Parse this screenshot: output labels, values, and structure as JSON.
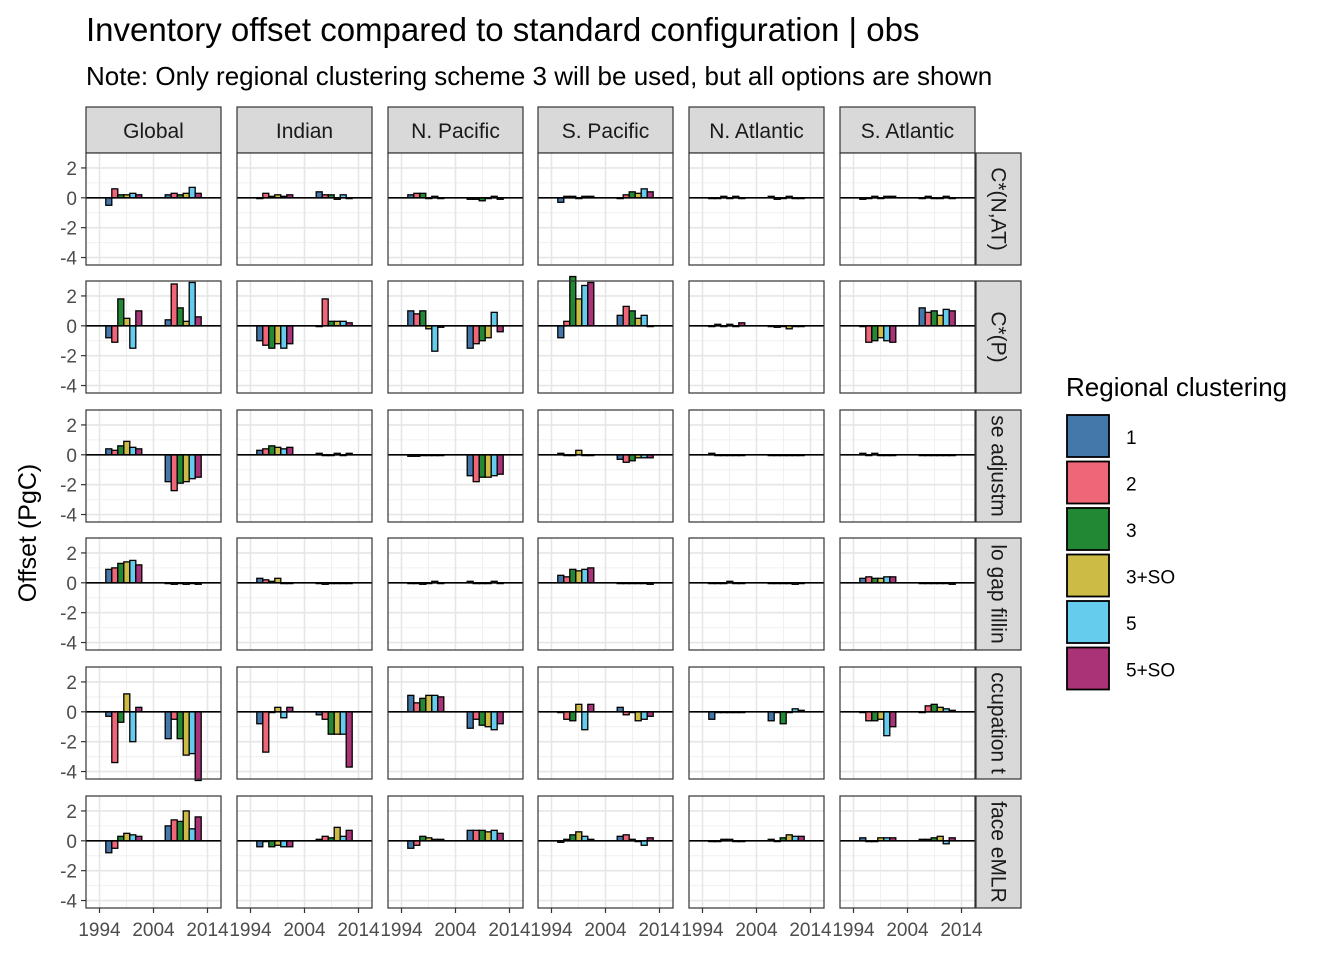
{
  "chart_data": {
    "type": "bar",
    "title": "Inventory offset compared to standard configuration | obs",
    "subtitle": "Note: Only regional clustering scheme 3 will be used, but all options are shown",
    "ylabel": "Offset (PgC)",
    "xlabel": "",
    "ylim": [
      -4.5,
      3
    ],
    "yticks": [
      2,
      0,
      -2,
      -4
    ],
    "xticks": [
      "1994",
      "2004",
      "2014"
    ],
    "xticks_year_values": [
      1994,
      2004,
      2014
    ],
    "xticks_minor_labels": [
      "-2004"
    ],
    "columns": [
      "Global",
      "Indian",
      "N. Pacific",
      "S. Pacific",
      "N. Atlantic",
      "S. Atlantic"
    ],
    "rows": [
      "C*(N,AT)",
      "C*(P)",
      "se adjustm",
      "lo gap fillin",
      "ccupation t",
      "face eMLR"
    ],
    "x_years": [
      1994,
      2004,
      2014
    ],
    "legend": {
      "title": "Regional clustering",
      "items": [
        {
          "name": "1",
          "color": "#4477aa"
        },
        {
          "name": "2",
          "color": "#ee6677"
        },
        {
          "name": "3",
          "color": "#228833"
        },
        {
          "name": "3+SO",
          "color": "#ccbb44"
        },
        {
          "name": "5",
          "color": "#66ccee"
        },
        {
          "name": "5+SO",
          "color": "#aa3377"
        }
      ]
    },
    "panels": [
      [
        [
          [
            -0.5,
            0.6,
            0.2,
            0.2,
            0.3,
            0.2
          ],
          [
            0.2,
            0.3,
            0.2,
            0.3,
            0.7,
            0.3
          ]
        ],
        [
          [
            0.0,
            0.3,
            0.1,
            0.2,
            0.1,
            0.2
          ],
          [
            0.4,
            0.2,
            0.2,
            -0.1,
            0.2,
            0.0
          ]
        ],
        [
          [
            0.2,
            0.3,
            0.3,
            0.0,
            0.1,
            0.0
          ],
          [
            -0.1,
            -0.1,
            -0.2,
            0.0,
            0.1,
            -0.1
          ]
        ],
        [
          [
            -0.3,
            0.1,
            0.1,
            0.0,
            0.1,
            0.1
          ],
          [
            0.0,
            0.2,
            0.4,
            0.3,
            0.6,
            0.4
          ]
        ],
        [
          [
            0.0,
            0.0,
            0.1,
            0.0,
            0.1,
            0.0
          ],
          [
            0.1,
            -0.1,
            0.0,
            0.1,
            0.0,
            0.0
          ]
        ],
        [
          [
            -0.1,
            0.0,
            0.1,
            0.0,
            0.1,
            0.1
          ],
          [
            0.0,
            0.1,
            0.0,
            0.0,
            0.1,
            0.0
          ]
        ]
      ],
      [
        [
          [
            -0.8,
            -1.1,
            1.8,
            0.5,
            -1.5,
            1.0
          ],
          [
            0.4,
            2.8,
            1.2,
            0.3,
            2.9,
            0.6
          ]
        ],
        [
          [
            -1.0,
            -1.3,
            -1.5,
            -1.2,
            -1.5,
            -1.2
          ],
          [
            0.0,
            1.8,
            0.3,
            0.3,
            0.3,
            0.2
          ]
        ],
        [
          [
            1.0,
            0.8,
            1.0,
            -0.2,
            -1.7,
            -0.1
          ],
          [
            -1.5,
            -1.2,
            -1.0,
            -0.8,
            0.9,
            -0.4
          ]
        ],
        [
          [
            -0.8,
            0.3,
            3.3,
            1.8,
            2.7,
            2.9
          ],
          [
            0.7,
            1.3,
            1.0,
            0.5,
            0.7,
            0.0
          ]
        ],
        [
          [
            0.0,
            0.1,
            0.0,
            0.1,
            0.0,
            0.2
          ],
          [
            0.0,
            -0.1,
            0.0,
            -0.2,
            0.0,
            0.0
          ]
        ],
        [
          [
            0.0,
            -1.1,
            -1.0,
            -0.8,
            -1.0,
            -1.1
          ],
          [
            1.2,
            0.9,
            1.0,
            0.7,
            1.1,
            1.0
          ]
        ]
      ],
      [
        [
          [
            0.4,
            0.3,
            0.6,
            0.9,
            0.5,
            0.4
          ],
          [
            -1.8,
            -2.4,
            -1.9,
            -1.8,
            -1.6,
            -1.5
          ]
        ],
        [
          [
            0.3,
            0.4,
            0.6,
            0.5,
            0.4,
            0.5
          ],
          [
            0.1,
            0.0,
            0.0,
            0.1,
            0.0,
            0.1
          ]
        ],
        [
          [
            -0.1,
            -0.1,
            0.0,
            0.0,
            0.0,
            0.0
          ],
          [
            -1.4,
            -1.8,
            -1.5,
            -1.5,
            -1.4,
            -1.3
          ]
        ],
        [
          [
            0.1,
            0.0,
            0.0,
            0.3,
            0.0,
            0.0
          ],
          [
            -0.3,
            -0.5,
            -0.4,
            -0.2,
            -0.2,
            -0.2
          ]
        ],
        [
          [
            0.1,
            0.0,
            0.0,
            0.0,
            0.0,
            0.0
          ],
          [
            0.0,
            0.0,
            0.0,
            0.0,
            0.0,
            0.0
          ]
        ],
        [
          [
            0.1,
            0.0,
            0.1,
            0.0,
            0.0,
            0.0
          ],
          [
            0.0,
            0.0,
            0.0,
            0.0,
            0.0,
            0.0
          ]
        ]
      ],
      [
        [
          [
            0.9,
            1.0,
            1.3,
            1.4,
            1.5,
            1.2
          ],
          [
            0.0,
            -0.1,
            0.0,
            -0.1,
            0.0,
            -0.1
          ]
        ],
        [
          [
            0.3,
            0.2,
            0.1,
            0.3,
            0.0,
            0.0
          ],
          [
            0.0,
            -0.1,
            0.0,
            0.0,
            0.0,
            0.0
          ]
        ],
        [
          [
            0.0,
            0.0,
            -0.1,
            0.0,
            0.1,
            0.0
          ],
          [
            0.1,
            0.0,
            0.0,
            0.0,
            0.1,
            0.0
          ]
        ],
        [
          [
            0.5,
            0.4,
            0.9,
            0.8,
            0.9,
            1.0
          ],
          [
            0.0,
            0.0,
            0.0,
            0.0,
            0.0,
            -0.1
          ]
        ],
        [
          [
            0.0,
            0.0,
            0.0,
            0.1,
            0.0,
            0.0
          ],
          [
            0.0,
            0.0,
            0.0,
            0.0,
            -0.1,
            0.0
          ]
        ],
        [
          [
            0.3,
            0.4,
            0.3,
            0.3,
            0.4,
            0.4
          ],
          [
            0.0,
            0.0,
            0.0,
            0.0,
            0.0,
            -0.1
          ]
        ]
      ],
      [
        [
          [
            -0.3,
            -3.4,
            -0.7,
            1.2,
            -2.0,
            0.3
          ],
          [
            -1.8,
            -0.5,
            -1.8,
            -2.9,
            -2.8,
            -4.6
          ]
        ],
        [
          [
            -0.8,
            -2.7,
            0.0,
            0.3,
            -0.4,
            0.3
          ],
          [
            -0.2,
            -0.5,
            -1.5,
            -1.5,
            -1.5,
            -3.7
          ]
        ],
        [
          [
            1.1,
            0.6,
            0.9,
            1.1,
            1.1,
            1.0
          ],
          [
            -1.1,
            -0.5,
            -0.9,
            -1.0,
            -1.2,
            -0.8
          ]
        ],
        [
          [
            0.0,
            -0.5,
            -0.6,
            0.5,
            -1.2,
            0.5
          ],
          [
            0.3,
            -0.2,
            0.0,
            -0.6,
            -0.5,
            -0.3
          ]
        ],
        [
          [
            -0.5,
            0.0,
            0.0,
            0.0,
            0.0,
            0.0
          ],
          [
            -0.6,
            0.0,
            -0.8,
            0.0,
            0.2,
            0.1
          ]
        ],
        [
          [
            0.0,
            -0.6,
            -0.6,
            -0.5,
            -1.6,
            -1.0
          ],
          [
            0.0,
            0.4,
            0.5,
            0.3,
            0.2,
            0.1
          ]
        ]
      ],
      [
        [
          [
            -0.8,
            -0.5,
            0.3,
            0.5,
            0.4,
            0.3
          ],
          [
            1.0,
            1.4,
            1.3,
            2.0,
            0.8,
            1.6
          ]
        ],
        [
          [
            -0.4,
            0.0,
            -0.4,
            -0.3,
            -0.4,
            -0.4
          ],
          [
            0.1,
            0.3,
            0.2,
            0.9,
            0.3,
            0.7
          ]
        ],
        [
          [
            -0.5,
            -0.3,
            0.3,
            0.2,
            0.1,
            0.1
          ],
          [
            0.7,
            0.7,
            0.7,
            0.6,
            0.7,
            0.5
          ]
        ],
        [
          [
            -0.1,
            0.1,
            0.4,
            0.6,
            0.3,
            0.1
          ],
          [
            0.3,
            0.4,
            0.1,
            0.0,
            -0.3,
            0.2
          ]
        ],
        [
          [
            0.0,
            0.0,
            0.1,
            0.1,
            0.0,
            0.0
          ],
          [
            0.1,
            0.0,
            0.2,
            0.4,
            0.3,
            0.3
          ]
        ],
        [
          [
            0.2,
            0.0,
            0.0,
            0.2,
            0.2,
            0.2
          ],
          [
            0.1,
            0.1,
            0.2,
            0.3,
            -0.2,
            0.2
          ]
        ]
      ]
    ]
  }
}
